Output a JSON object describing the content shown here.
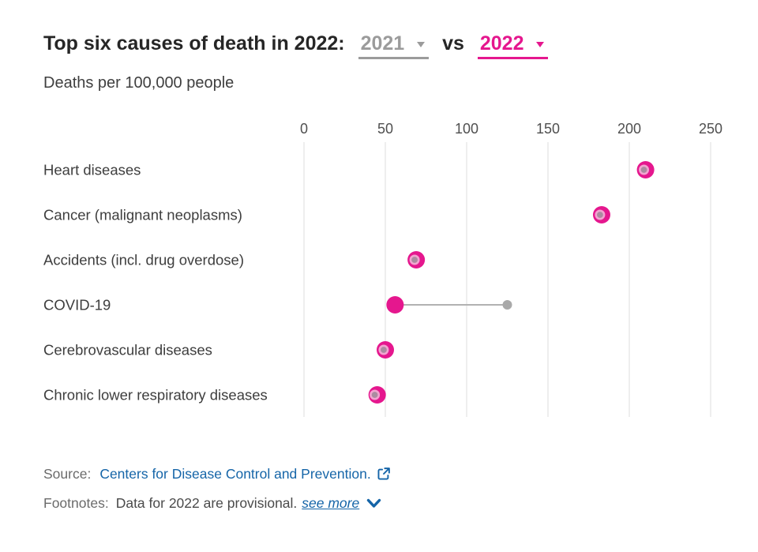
{
  "header": {
    "title": "Top six causes of death in 2022:",
    "year_left": {
      "label": "2021"
    },
    "vs": "vs",
    "year_right": {
      "label": "2022"
    },
    "subtitle": "Deaths per 100,000 people"
  },
  "colors": {
    "pink_accent": "#e5178e",
    "gray_accent": "#9b9b9b",
    "gray_dot": "#a9a9a9",
    "overlap_dot_fill": "#ab8ba0",
    "overlap_dot_ring": "#f2a3d0",
    "connector": "#b2b2b2",
    "gridline": "#e8e8e8",
    "tick_text": "#4f4f4f",
    "category_text": "#3e3e3e",
    "link_blue": "#1565a8",
    "title_text": "#262626"
  },
  "chart_data": {
    "type": "scatter",
    "variant": "horizontal-dot-plot-dumbbell",
    "title": "Top six causes of death in 2022: 2021 vs 2022",
    "subtitle_unit": "Deaths per 100,000 people",
    "categories": [
      "Heart diseases",
      "Cancer (malignant neoplasms)",
      "Accidents (incl. drug overdose)",
      "COVID-19",
      "Cerebrovascular diseases",
      "Chronic lower respiratory diseases"
    ],
    "series": [
      {
        "name": "2021",
        "color": "#a9a9a9",
        "values": [
          209,
          182,
          68,
          125,
          49,
          43.5
        ]
      },
      {
        "name": "2022",
        "color": "#e5178e",
        "values": [
          210,
          183,
          69,
          56,
          50,
          45
        ]
      }
    ],
    "xlim": [
      0,
      250
    ],
    "xticks": [
      0,
      50,
      100,
      150,
      200,
      250
    ],
    "grid": true,
    "legend_position": "none (years shown as colored selectors in the title)"
  },
  "footer": {
    "source_label": "Source:",
    "source_link": "Centers for Disease Control and Prevention.",
    "external_link_icon": "external-link-icon",
    "footnotes_label": "Footnotes:",
    "footnotes_text": "Data for 2022 are provisional.",
    "see_more": "see more",
    "see_more_icon": "chevron-down-icon"
  }
}
